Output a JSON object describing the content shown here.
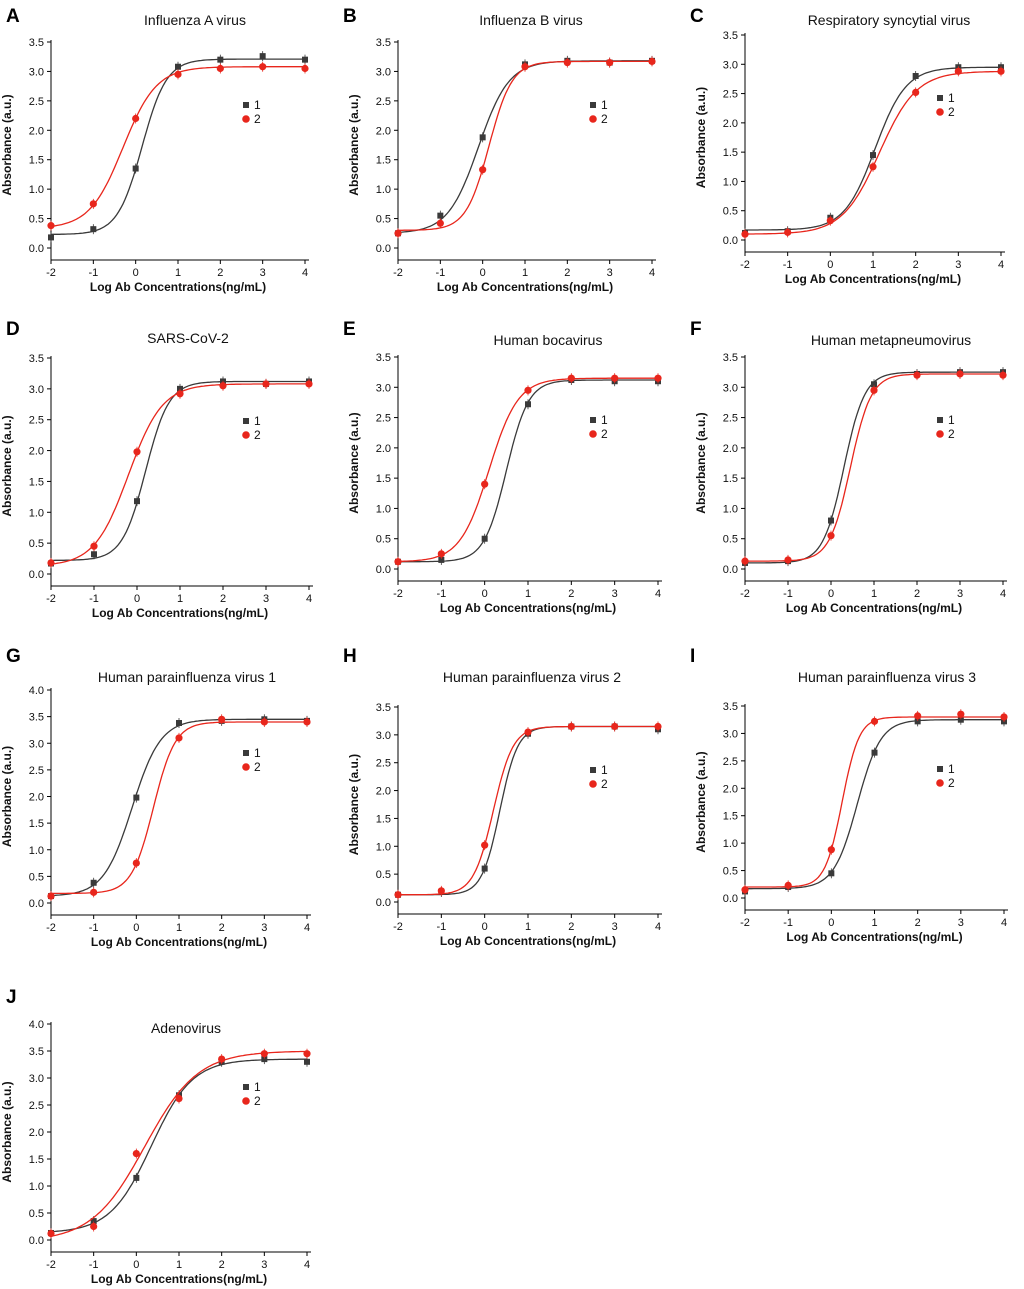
{
  "figure": {
    "series_names": [
      "1",
      "2"
    ],
    "colors": {
      "series_1": "#3a3a3a",
      "series_2": "#e8261c"
    }
  },
  "chart_data": [
    {
      "letter": "A",
      "title": "Influenza A virus",
      "type": "scatter",
      "xlabel": "Log Ab Concentrations(ng/mL)",
      "ylabel": "Absorbance (a.u.)",
      "xlim": [
        -2,
        4
      ],
      "ylim": [
        0,
        3.5
      ],
      "xticks": [
        "-2",
        "-1",
        "0",
        "1",
        "2",
        "3",
        "4"
      ],
      "yticks": [
        "0.0",
        "0.5",
        "1.0",
        "1.5",
        "2.0",
        "2.5",
        "3.0",
        "3.5"
      ],
      "x": [
        -2,
        -1,
        0,
        1,
        2,
        3,
        4
      ],
      "legend": [
        "1",
        "2"
      ],
      "series": [
        {
          "name": "1",
          "values": [
            0.18,
            0.32,
            1.35,
            3.08,
            3.2,
            3.26,
            3.2
          ]
        },
        {
          "name": "2",
          "values": [
            0.38,
            0.75,
            2.2,
            2.95,
            3.05,
            3.08,
            3.05
          ]
        }
      ]
    },
    {
      "letter": "B",
      "title": "Influenza B virus",
      "type": "scatter",
      "xlabel": "Log Ab Concentrations(ng/mL)",
      "ylabel": "Absorbance (a.u.)",
      "xlim": [
        -2,
        4
      ],
      "ylim": [
        0,
        3.5
      ],
      "xticks": [
        "-2",
        "-1",
        "0",
        "1",
        "2",
        "3",
        "4"
      ],
      "yticks": [
        "0.0",
        "0.5",
        "1.0",
        "1.5",
        "2.0",
        "2.5",
        "3.0",
        "3.5"
      ],
      "x": [
        -2,
        -1,
        0,
        1,
        2,
        3,
        4
      ],
      "legend": [
        "1",
        "2"
      ],
      "series": [
        {
          "name": "1",
          "values": [
            0.25,
            0.55,
            1.88,
            3.12,
            3.18,
            3.15,
            3.18
          ]
        },
        {
          "name": "2",
          "values": [
            0.25,
            0.42,
            1.33,
            3.08,
            3.15,
            3.15,
            3.17
          ]
        }
      ]
    },
    {
      "letter": "C",
      "title": "Respiratory syncytial virus",
      "type": "scatter",
      "xlabel": "Log Ab Concentrations(ng/mL)",
      "ylabel": "Absorbance (a.u.)",
      "xlim": [
        -2,
        4
      ],
      "ylim": [
        0,
        3.5
      ],
      "xticks": [
        "-2",
        "-1",
        "0",
        "1",
        "2",
        "3",
        "4"
      ],
      "yticks": [
        "0.0",
        "0.5",
        "1.0",
        "1.5",
        "2.0",
        "2.5",
        "3.0",
        "3.5"
      ],
      "x": [
        -2,
        -1,
        0,
        1,
        2,
        3,
        4
      ],
      "legend": [
        "1",
        "2"
      ],
      "series": [
        {
          "name": "1",
          "values": [
            0.12,
            0.15,
            0.38,
            1.45,
            2.8,
            2.95,
            2.95
          ]
        },
        {
          "name": "2",
          "values": [
            0.1,
            0.13,
            0.33,
            1.25,
            2.52,
            2.88,
            2.88
          ]
        }
      ]
    },
    {
      "letter": "D",
      "title": "SARS-CoV-2",
      "type": "scatter",
      "xlabel": "Log Ab Concentrations(ng/mL)",
      "ylabel": "Absorbance (a.u.)",
      "xlim": [
        -2,
        4
      ],
      "ylim": [
        0,
        3.5
      ],
      "xticks": [
        "-2",
        "-1",
        "0",
        "1",
        "2",
        "3",
        "4"
      ],
      "yticks": [
        "0.0",
        "0.5",
        "1.0",
        "1.5",
        "2.0",
        "2.5",
        "3.0",
        "3.5"
      ],
      "x": [
        -2,
        -1,
        0,
        1,
        2,
        3,
        4
      ],
      "legend": [
        "1",
        "2"
      ],
      "series": [
        {
          "name": "1",
          "values": [
            0.17,
            0.32,
            1.18,
            3.0,
            3.12,
            3.08,
            3.12
          ]
        },
        {
          "name": "2",
          "values": [
            0.18,
            0.45,
            1.98,
            2.92,
            3.05,
            3.08,
            3.08
          ]
        }
      ]
    },
    {
      "letter": "E",
      "title": "Human bocavirus",
      "type": "scatter",
      "xlabel": "Log Ab Concentrations(ng/mL)",
      "ylabel": "Absorbance (a.u.)",
      "xlim": [
        -2,
        4
      ],
      "ylim": [
        0,
        3.5
      ],
      "xticks": [
        "-2",
        "-1",
        "0",
        "1",
        "2",
        "3",
        "4"
      ],
      "yticks": [
        "0.0",
        "0.5",
        "1.0",
        "1.5",
        "2.0",
        "2.5",
        "3.0",
        "3.5"
      ],
      "x": [
        -2,
        -1,
        0,
        1,
        2,
        3,
        4
      ],
      "legend": [
        "1",
        "2"
      ],
      "series": [
        {
          "name": "1",
          "values": [
            0.12,
            0.15,
            0.5,
            2.72,
            3.12,
            3.1,
            3.1
          ]
        },
        {
          "name": "2",
          "values": [
            0.12,
            0.25,
            1.4,
            2.95,
            3.15,
            3.15,
            3.15
          ]
        }
      ]
    },
    {
      "letter": "F",
      "title": "Human metapneumovirus",
      "type": "scatter",
      "xlabel": "Log Ab Concentrations(ng/mL)",
      "ylabel": "Absorbance (a.u.)",
      "xlim": [
        -2,
        4
      ],
      "ylim": [
        0,
        3.5
      ],
      "xticks": [
        "-2",
        "-1",
        "0",
        "1",
        "2",
        "3",
        "4"
      ],
      "yticks": [
        "0.0",
        "0.5",
        "1.0",
        "1.5",
        "2.0",
        "2.5",
        "3.0",
        "3.5"
      ],
      "x": [
        -2,
        -1,
        0,
        1,
        2,
        3,
        4
      ],
      "legend": [
        "1",
        "2"
      ],
      "series": [
        {
          "name": "1",
          "values": [
            0.1,
            0.13,
            0.8,
            3.05,
            3.22,
            3.25,
            3.25
          ]
        },
        {
          "name": "2",
          "values": [
            0.13,
            0.15,
            0.55,
            2.95,
            3.2,
            3.22,
            3.2
          ]
        }
      ]
    },
    {
      "letter": "G",
      "title": "Human parainfluenza virus 1",
      "type": "scatter",
      "xlabel": "Log Ab Concentrations(ng/mL)",
      "ylabel": "Absorbance (a.u.)",
      "xlim": [
        -2,
        4
      ],
      "ylim": [
        0,
        4.0
      ],
      "xticks": [
        "-2",
        "-1",
        "0",
        "1",
        "2",
        "3",
        "4"
      ],
      "yticks": [
        "0.0",
        "0.5",
        "1.0",
        "1.5",
        "2.0",
        "2.5",
        "3.0",
        "3.5",
        "4.0"
      ],
      "x": [
        -2,
        -1,
        0,
        1,
        2,
        3,
        4
      ],
      "legend": [
        "1",
        "2"
      ],
      "series": [
        {
          "name": "1",
          "values": [
            0.13,
            0.38,
            1.98,
            3.38,
            3.42,
            3.45,
            3.42
          ]
        },
        {
          "name": "2",
          "values": [
            0.13,
            0.2,
            0.75,
            3.1,
            3.45,
            3.4,
            3.4
          ]
        }
      ]
    },
    {
      "letter": "H",
      "title": "Human parainfluenza virus 2",
      "type": "scatter",
      "xlabel": "Log Ab Concentrations(ng/mL)",
      "ylabel": "Absorbance (a.u.)",
      "xlim": [
        -2,
        4
      ],
      "ylim": [
        0,
        3.5
      ],
      "xticks": [
        "-2",
        "-1",
        "0",
        "1",
        "2",
        "3",
        "4"
      ],
      "yticks": [
        "0.0",
        "0.5",
        "1.0",
        "1.5",
        "2.0",
        "2.5",
        "3.0",
        "3.5"
      ],
      "x": [
        -2,
        -1,
        0,
        1,
        2,
        3,
        4
      ],
      "legend": [
        "1",
        "2"
      ],
      "series": [
        {
          "name": "1",
          "values": [
            0.13,
            0.18,
            0.6,
            3.02,
            3.15,
            3.15,
            3.1
          ]
        },
        {
          "name": "2",
          "values": [
            0.13,
            0.2,
            1.02,
            3.05,
            3.15,
            3.15,
            3.15
          ]
        }
      ]
    },
    {
      "letter": "I",
      "title": "Human parainfluenza virus 3",
      "type": "scatter",
      "xlabel": "Log Ab Concentrations(ng/mL)",
      "ylabel": "Absorbance (a.u.)",
      "xlim": [
        -2,
        4
      ],
      "ylim": [
        0,
        3.5
      ],
      "xticks": [
        "-2",
        "-1",
        "0",
        "1",
        "2",
        "3",
        "4"
      ],
      "yticks": [
        "0.0",
        "0.5",
        "1.0",
        "1.5",
        "2.0",
        "2.5",
        "3.0",
        "3.5"
      ],
      "x": [
        -2,
        -1,
        0,
        1,
        2,
        3,
        4
      ],
      "legend": [
        "1",
        "2"
      ],
      "series": [
        {
          "name": "1",
          "values": [
            0.12,
            0.2,
            0.45,
            2.65,
            3.22,
            3.25,
            3.22
          ]
        },
        {
          "name": "2",
          "values": [
            0.15,
            0.23,
            0.88,
            3.22,
            3.32,
            3.35,
            3.3
          ]
        }
      ]
    },
    {
      "letter": "J",
      "title": "Adenovirus",
      "type": "scatter",
      "xlabel": "Log Ab Concentrations(ng/mL)",
      "ylabel": "Absorbance (a.u.)",
      "xlim": [
        -2,
        4
      ],
      "ylim": [
        0,
        4.0
      ],
      "xticks": [
        "-2",
        "-1",
        "0",
        "1",
        "2",
        "3",
        "4"
      ],
      "yticks": [
        "0.0",
        "0.5",
        "1.0",
        "1.5",
        "2.0",
        "2.5",
        "3.0",
        "3.5",
        "4.0"
      ],
      "x": [
        -2,
        -1,
        0,
        1,
        2,
        3,
        4
      ],
      "legend": [
        "1",
        "2"
      ],
      "series": [
        {
          "name": "1",
          "values": [
            0.13,
            0.35,
            1.15,
            2.68,
            3.3,
            3.35,
            3.3
          ]
        },
        {
          "name": "2",
          "values": [
            0.12,
            0.25,
            1.6,
            2.62,
            3.35,
            3.45,
            3.45
          ]
        }
      ]
    }
  ]
}
